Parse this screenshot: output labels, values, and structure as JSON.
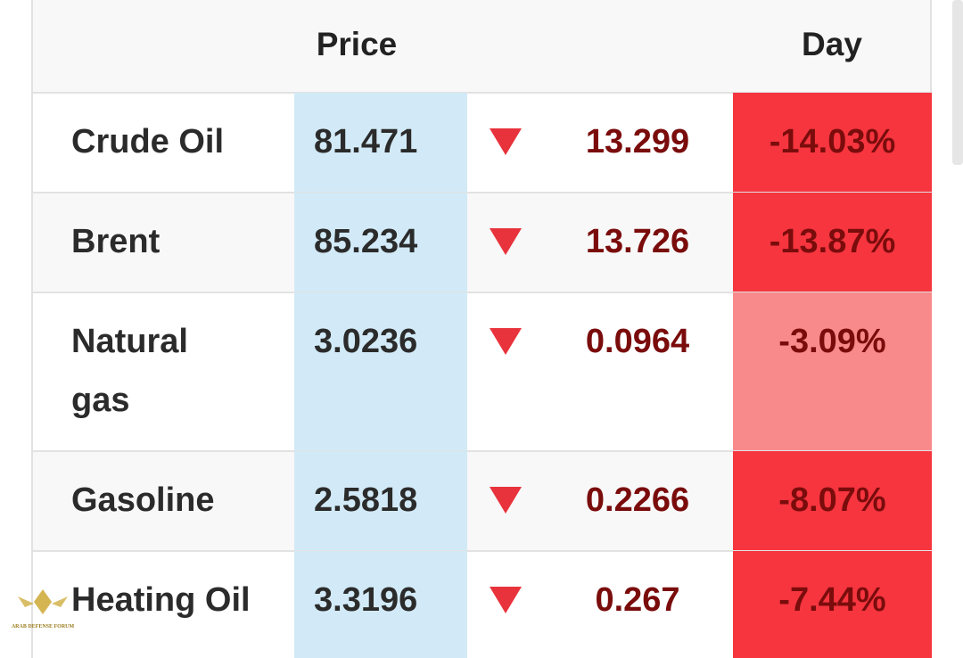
{
  "header": {
    "columns": [
      "Price",
      "Day"
    ]
  },
  "table": {
    "rows": [
      {
        "name": "Crude Oil",
        "price": "81.471",
        "change": "13.299",
        "day": "-14.03%",
        "day_color": "#f6353f"
      },
      {
        "name": "Brent",
        "price": "85.234",
        "change": "13.726",
        "day": "-13.87%",
        "day_color": "#f6353f"
      },
      {
        "name": "Natural gas",
        "price": "3.0236",
        "change": "0.0964",
        "day": "-3.09%",
        "day_color": "#f98a8b"
      },
      {
        "name": "Gasoline",
        "price": "2.5818",
        "change": "0.2266",
        "day": "-8.07%",
        "day_color": "#f6353f"
      },
      {
        "name": "Heating Oil",
        "price": "3.3196",
        "change": "0.267",
        "day": "-7.44%",
        "day_color": "#f6353f"
      }
    ]
  },
  "watermark": {
    "text": "ARAB DEFENSE FORUM"
  }
}
